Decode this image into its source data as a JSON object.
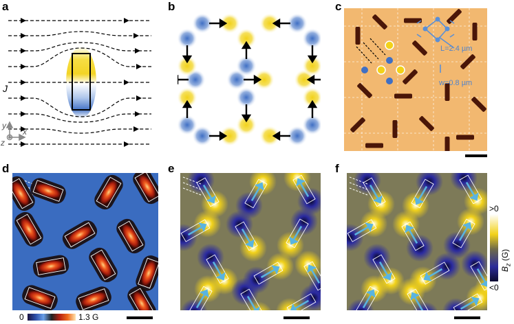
{
  "figure": {
    "panel_letters": [
      "a",
      "b",
      "c",
      "d",
      "e",
      "f"
    ],
    "panel_a": {
      "current_label": "J",
      "axis_y": "y",
      "axis_x": "x",
      "axis_z": "z"
    },
    "panel_c": {
      "L_label": "L=2.4 µm",
      "w_label": "w=0.8 µm"
    },
    "panel_d": {
      "colorbar_min": "0",
      "colorbar_max": "1.3 G"
    },
    "panel_f": {
      "colorbar_top": ">0",
      "colorbar_bottom": "<0",
      "colorbar_title": "B",
      "colorbar_title_sub": "z",
      "colorbar_title_unit": " (G)"
    },
    "colors": {
      "yellow": "#f2d21a",
      "blue": "#3f6fc4",
      "navy": "#1e1a78",
      "cyan_arrow": "#5ab4e0",
      "orange_bg": "#f2b870",
      "d_background": "#3a6cc0"
    }
  }
}
